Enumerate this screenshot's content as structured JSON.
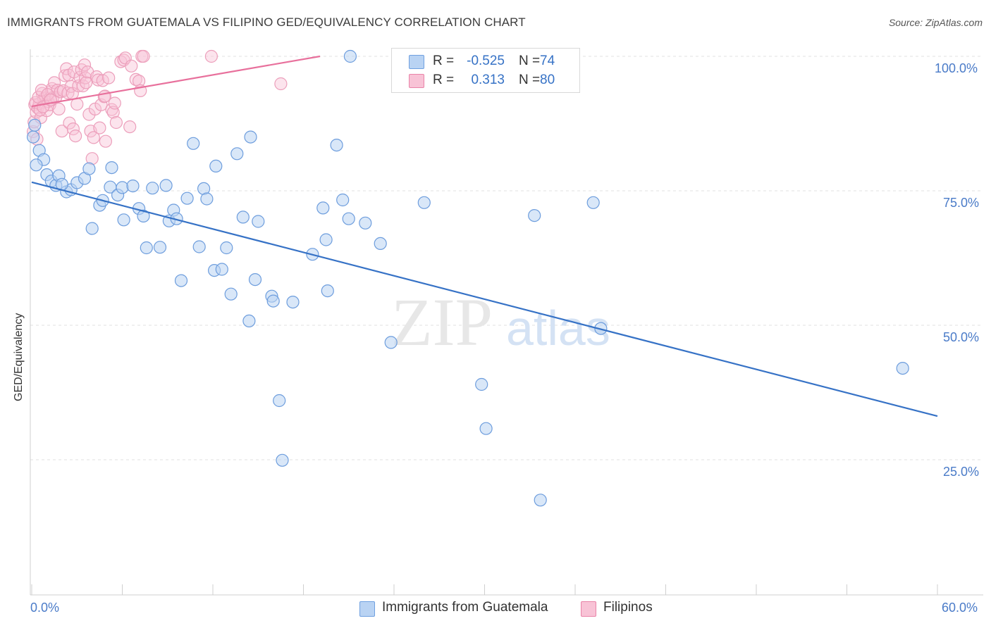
{
  "title": "IMMIGRANTS FROM GUATEMALA VS FILIPINO GED/EQUIVALENCY CORRELATION CHART",
  "source": "Source: ZipAtlas.com",
  "watermark": {
    "zip": "ZIP",
    "atlas": "atlas"
  },
  "legend": {
    "series1": {
      "r_label": "R =",
      "r_value": "-0.525",
      "n_label": "N =",
      "n_value": "74",
      "color": "#6fa0e0",
      "fill": "#b9d3f3"
    },
    "series2": {
      "r_label": "R =",
      "r_value": "0.313",
      "n_label": "N =",
      "n_value": "80",
      "color": "#e983a8",
      "fill": "#f8c3d6"
    }
  },
  "bottom_legend": {
    "series1": "Immigrants from Guatemala",
    "series2": "Filipinos"
  },
  "axes": {
    "x_min_label": "0.0%",
    "x_max_label": "60.0%",
    "y_ticks": [
      "100.0%",
      "75.0%",
      "50.0%",
      "25.0%"
    ],
    "ylabel": "GED/Equivalency"
  },
  "chart_data": {
    "type": "scatter",
    "title": "IMMIGRANTS FROM GUATEMALA VS FILIPINO GED/EQUIVALENCY CORRELATION CHART",
    "xlabel": "",
    "ylabel": "GED/Equivalency",
    "xlim": [
      0,
      60
    ],
    "ylim": [
      0,
      104
    ],
    "y_gridlines": [
      25,
      50,
      75,
      100
    ],
    "series": [
      {
        "name": "Immigrants from Guatemala",
        "color": "#3672c6",
        "trend": {
          "x": [
            0,
            60
          ],
          "y": [
            76.6,
            33.1
          ]
        },
        "points": [
          [
            0.1,
            85.0
          ],
          [
            0.5,
            82.5
          ],
          [
            0.8,
            80.8
          ],
          [
            1.0,
            78.0
          ],
          [
            1.3,
            76.8
          ],
          [
            1.6,
            76.0
          ],
          [
            1.8,
            77.8
          ],
          [
            2.3,
            74.8
          ],
          [
            2.6,
            75.2
          ],
          [
            3.0,
            76.5
          ],
          [
            3.5,
            77.3
          ],
          [
            3.8,
            79.1
          ],
          [
            4.0,
            68.0
          ],
          [
            4.5,
            72.3
          ],
          [
            4.7,
            73.2
          ],
          [
            5.2,
            75.7
          ],
          [
            5.3,
            79.3
          ],
          [
            5.7,
            74.2
          ],
          [
            6.0,
            75.6
          ],
          [
            6.1,
            69.6
          ],
          [
            6.7,
            75.9
          ],
          [
            7.1,
            71.7
          ],
          [
            7.4,
            70.3
          ],
          [
            7.6,
            64.4
          ],
          [
            8.0,
            75.5
          ],
          [
            8.5,
            64.5
          ],
          [
            8.9,
            76.0
          ],
          [
            9.1,
            69.4
          ],
          [
            9.4,
            71.4
          ],
          [
            9.6,
            69.8
          ],
          [
            9.9,
            58.3
          ],
          [
            10.3,
            73.6
          ],
          [
            10.7,
            83.8
          ],
          [
            11.1,
            64.6
          ],
          [
            11.4,
            75.4
          ],
          [
            11.6,
            73.5
          ],
          [
            12.1,
            60.2
          ],
          [
            12.2,
            79.6
          ],
          [
            12.6,
            60.4
          ],
          [
            12.9,
            64.4
          ],
          [
            13.2,
            55.8
          ],
          [
            13.6,
            81.9
          ],
          [
            14.0,
            70.1
          ],
          [
            14.4,
            50.8
          ],
          [
            14.5,
            85.0
          ],
          [
            14.8,
            58.5
          ],
          [
            15.0,
            69.3
          ],
          [
            15.9,
            55.4
          ],
          [
            16.0,
            54.5
          ],
          [
            16.4,
            36.0
          ],
          [
            16.6,
            24.9
          ],
          [
            17.3,
            54.3
          ],
          [
            18.6,
            63.2
          ],
          [
            19.3,
            71.8
          ],
          [
            19.5,
            65.9
          ],
          [
            19.6,
            56.4
          ],
          [
            20.2,
            83.5
          ],
          [
            20.6,
            73.3
          ],
          [
            21.0,
            69.8
          ],
          [
            21.1,
            100.0
          ],
          [
            22.1,
            69.0
          ],
          [
            23.1,
            65.2
          ],
          [
            23.8,
            46.8
          ],
          [
            26.0,
            72.8
          ],
          [
            29.8,
            39.0
          ],
          [
            30.1,
            30.8
          ],
          [
            33.3,
            70.4
          ],
          [
            33.7,
            17.5
          ],
          [
            37.2,
            72.8
          ],
          [
            37.7,
            49.4
          ],
          [
            57.7,
            42.0
          ],
          [
            0.2,
            87.2
          ],
          [
            0.3,
            79.8
          ],
          [
            2.0,
            76.2
          ]
        ]
      },
      {
        "name": "Filipinos",
        "color": "#e8709c",
        "trend": {
          "x": [
            0,
            19.1
          ],
          "y": [
            90.7,
            100.0
          ]
        },
        "points": [
          [
            0.1,
            86.0
          ],
          [
            0.15,
            87.8
          ],
          [
            0.2,
            91.0
          ],
          [
            0.3,
            89.6
          ],
          [
            0.35,
            84.6
          ],
          [
            0.4,
            90.4
          ],
          [
            0.5,
            91.2
          ],
          [
            0.6,
            88.6
          ],
          [
            0.7,
            93.1
          ],
          [
            0.8,
            92.1
          ],
          [
            0.9,
            92.3
          ],
          [
            1.0,
            89.9
          ],
          [
            1.1,
            91.6
          ],
          [
            1.2,
            91.0
          ],
          [
            1.3,
            93.5
          ],
          [
            1.35,
            94.0
          ],
          [
            1.4,
            92.3
          ],
          [
            1.5,
            95.1
          ],
          [
            1.6,
            92.4
          ],
          [
            1.7,
            93.7
          ],
          [
            1.8,
            90.2
          ],
          [
            1.9,
            93.4
          ],
          [
            2.0,
            86.1
          ],
          [
            2.1,
            93.6
          ],
          [
            2.2,
            96.4
          ],
          [
            2.3,
            97.7
          ],
          [
            2.4,
            93.2
          ],
          [
            2.45,
            96.5
          ],
          [
            2.5,
            87.6
          ],
          [
            2.6,
            94.4
          ],
          [
            2.7,
            93.1
          ],
          [
            2.75,
            86.5
          ],
          [
            2.8,
            97.1
          ],
          [
            2.9,
            85.2
          ],
          [
            3.0,
            91.1
          ],
          [
            3.1,
            94.5
          ],
          [
            3.2,
            96.1
          ],
          [
            3.3,
            97.5
          ],
          [
            3.4,
            94.5
          ],
          [
            3.5,
            98.4
          ],
          [
            3.55,
            96.0
          ],
          [
            3.6,
            95.1
          ],
          [
            3.7,
            97.1
          ],
          [
            3.8,
            89.2
          ],
          [
            3.9,
            86.1
          ],
          [
            4.0,
            81.0
          ],
          [
            4.1,
            84.9
          ],
          [
            4.2,
            90.2
          ],
          [
            4.3,
            96.2
          ],
          [
            4.4,
            95.6
          ],
          [
            4.5,
            86.7
          ],
          [
            4.6,
            91.0
          ],
          [
            4.7,
            95.5
          ],
          [
            4.8,
            92.5
          ],
          [
            4.85,
            92.6
          ],
          [
            4.9,
            84.2
          ],
          [
            5.1,
            96.0
          ],
          [
            5.3,
            90.1
          ],
          [
            5.4,
            89.6
          ],
          [
            5.5,
            91.3
          ],
          [
            5.6,
            87.7
          ],
          [
            5.9,
            99.0
          ],
          [
            6.1,
            99.3
          ],
          [
            6.2,
            99.7
          ],
          [
            6.5,
            86.9
          ],
          [
            6.6,
            98.2
          ],
          [
            6.9,
            95.7
          ],
          [
            7.1,
            95.4
          ],
          [
            7.2,
            93.6
          ],
          [
            7.3,
            100.0
          ],
          [
            7.4,
            100.0
          ],
          [
            11.9,
            100.0
          ],
          [
            16.5,
            94.9
          ],
          [
            0.25,
            91.4
          ],
          [
            0.45,
            92.4
          ],
          [
            0.55,
            90.0
          ],
          [
            0.65,
            93.7
          ],
          [
            0.75,
            90.6
          ],
          [
            1.05,
            92.9
          ],
          [
            1.25,
            91.9
          ]
        ]
      }
    ]
  }
}
